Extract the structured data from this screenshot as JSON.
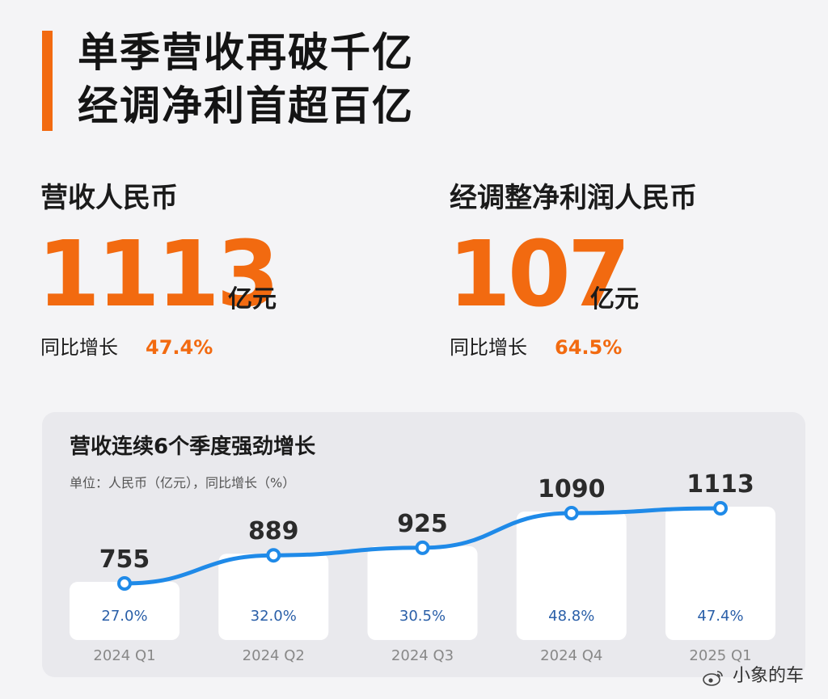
{
  "headline": {
    "line1": "单季营收再破千亿",
    "line2": "经调净利首超百亿"
  },
  "colors": {
    "accent": "#f26a10",
    "line": "#1f8ae8",
    "growth_text": "#2a5fa8"
  },
  "revenue": {
    "label": "营收人民币",
    "value": "1113",
    "unit": "亿元",
    "growth_label": "同比增长",
    "growth_value": "47.4%"
  },
  "net_profit": {
    "label": "经调整净利润人民币",
    "value": "107",
    "unit": "亿元",
    "growth_label": "同比增长",
    "growth_value": "64.5%"
  },
  "chart_data": {
    "type": "line",
    "title": "营收连续6个季度强劲增长",
    "subtitle": "单位：人民币（亿元），同比增长（%）",
    "categories": [
      "2024 Q1",
      "2024 Q2",
      "2024 Q3",
      "2024 Q4",
      "2025 Q1"
    ],
    "series": [
      {
        "values": [
          755,
          889,
          925,
          1090,
          1113
        ]
      }
    ],
    "growth_labels": [
      "27.0%",
      "32.0%",
      "30.5%",
      "48.8%",
      "47.4%"
    ],
    "ylim": [
      700,
      1150
    ],
    "grid": false
  },
  "watermark": {
    "icon": "weibo-icon",
    "text": "小象的车"
  }
}
